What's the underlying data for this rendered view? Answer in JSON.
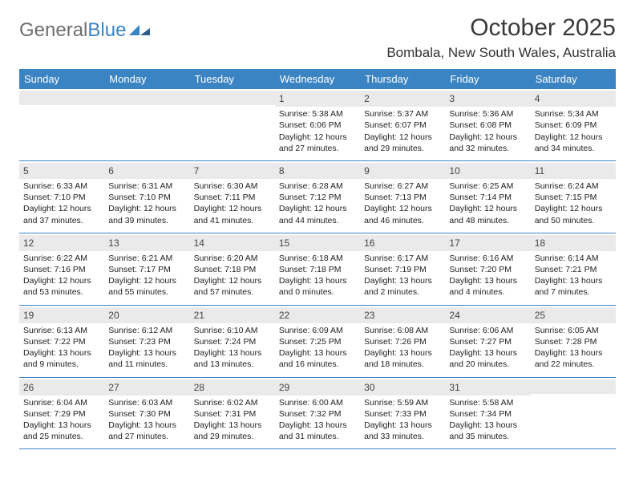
{
  "brand": {
    "word1": "General",
    "word2": "Blue",
    "word1_color": "#6d6d6d",
    "word2_color": "#3b84c4"
  },
  "title": "October 2025",
  "location": "Bombala, New South Wales, Australia",
  "header_bg": "#3b84c4",
  "header_fg": "#ffffff",
  "daynum_bg": "#eaeaea",
  "week_border": "#3b84c4",
  "days_of_week": [
    "Sunday",
    "Monday",
    "Tuesday",
    "Wednesday",
    "Thursday",
    "Friday",
    "Saturday"
  ],
  "weeks": [
    [
      {
        "n": "",
        "lines": []
      },
      {
        "n": "",
        "lines": []
      },
      {
        "n": "",
        "lines": []
      },
      {
        "n": "1",
        "lines": [
          "Sunrise: 5:38 AM",
          "Sunset: 6:06 PM",
          "Daylight: 12 hours",
          "and 27 minutes."
        ]
      },
      {
        "n": "2",
        "lines": [
          "Sunrise: 5:37 AM",
          "Sunset: 6:07 PM",
          "Daylight: 12 hours",
          "and 29 minutes."
        ]
      },
      {
        "n": "3",
        "lines": [
          "Sunrise: 5:36 AM",
          "Sunset: 6:08 PM",
          "Daylight: 12 hours",
          "and 32 minutes."
        ]
      },
      {
        "n": "4",
        "lines": [
          "Sunrise: 5:34 AM",
          "Sunset: 6:09 PM",
          "Daylight: 12 hours",
          "and 34 minutes."
        ]
      }
    ],
    [
      {
        "n": "5",
        "lines": [
          "Sunrise: 6:33 AM",
          "Sunset: 7:10 PM",
          "Daylight: 12 hours",
          "and 37 minutes."
        ]
      },
      {
        "n": "6",
        "lines": [
          "Sunrise: 6:31 AM",
          "Sunset: 7:10 PM",
          "Daylight: 12 hours",
          "and 39 minutes."
        ]
      },
      {
        "n": "7",
        "lines": [
          "Sunrise: 6:30 AM",
          "Sunset: 7:11 PM",
          "Daylight: 12 hours",
          "and 41 minutes."
        ]
      },
      {
        "n": "8",
        "lines": [
          "Sunrise: 6:28 AM",
          "Sunset: 7:12 PM",
          "Daylight: 12 hours",
          "and 44 minutes."
        ]
      },
      {
        "n": "9",
        "lines": [
          "Sunrise: 6:27 AM",
          "Sunset: 7:13 PM",
          "Daylight: 12 hours",
          "and 46 minutes."
        ]
      },
      {
        "n": "10",
        "lines": [
          "Sunrise: 6:25 AM",
          "Sunset: 7:14 PM",
          "Daylight: 12 hours",
          "and 48 minutes."
        ]
      },
      {
        "n": "11",
        "lines": [
          "Sunrise: 6:24 AM",
          "Sunset: 7:15 PM",
          "Daylight: 12 hours",
          "and 50 minutes."
        ]
      }
    ],
    [
      {
        "n": "12",
        "lines": [
          "Sunrise: 6:22 AM",
          "Sunset: 7:16 PM",
          "Daylight: 12 hours",
          "and 53 minutes."
        ]
      },
      {
        "n": "13",
        "lines": [
          "Sunrise: 6:21 AM",
          "Sunset: 7:17 PM",
          "Daylight: 12 hours",
          "and 55 minutes."
        ]
      },
      {
        "n": "14",
        "lines": [
          "Sunrise: 6:20 AM",
          "Sunset: 7:18 PM",
          "Daylight: 12 hours",
          "and 57 minutes."
        ]
      },
      {
        "n": "15",
        "lines": [
          "Sunrise: 6:18 AM",
          "Sunset: 7:18 PM",
          "Daylight: 13 hours",
          "and 0 minutes."
        ]
      },
      {
        "n": "16",
        "lines": [
          "Sunrise: 6:17 AM",
          "Sunset: 7:19 PM",
          "Daylight: 13 hours",
          "and 2 minutes."
        ]
      },
      {
        "n": "17",
        "lines": [
          "Sunrise: 6:16 AM",
          "Sunset: 7:20 PM",
          "Daylight: 13 hours",
          "and 4 minutes."
        ]
      },
      {
        "n": "18",
        "lines": [
          "Sunrise: 6:14 AM",
          "Sunset: 7:21 PM",
          "Daylight: 13 hours",
          "and 7 minutes."
        ]
      }
    ],
    [
      {
        "n": "19",
        "lines": [
          "Sunrise: 6:13 AM",
          "Sunset: 7:22 PM",
          "Daylight: 13 hours",
          "and 9 minutes."
        ]
      },
      {
        "n": "20",
        "lines": [
          "Sunrise: 6:12 AM",
          "Sunset: 7:23 PM",
          "Daylight: 13 hours",
          "and 11 minutes."
        ]
      },
      {
        "n": "21",
        "lines": [
          "Sunrise: 6:10 AM",
          "Sunset: 7:24 PM",
          "Daylight: 13 hours",
          "and 13 minutes."
        ]
      },
      {
        "n": "22",
        "lines": [
          "Sunrise: 6:09 AM",
          "Sunset: 7:25 PM",
          "Daylight: 13 hours",
          "and 16 minutes."
        ]
      },
      {
        "n": "23",
        "lines": [
          "Sunrise: 6:08 AM",
          "Sunset: 7:26 PM",
          "Daylight: 13 hours",
          "and 18 minutes."
        ]
      },
      {
        "n": "24",
        "lines": [
          "Sunrise: 6:06 AM",
          "Sunset: 7:27 PM",
          "Daylight: 13 hours",
          "and 20 minutes."
        ]
      },
      {
        "n": "25",
        "lines": [
          "Sunrise: 6:05 AM",
          "Sunset: 7:28 PM",
          "Daylight: 13 hours",
          "and 22 minutes."
        ]
      }
    ],
    [
      {
        "n": "26",
        "lines": [
          "Sunrise: 6:04 AM",
          "Sunset: 7:29 PM",
          "Daylight: 13 hours",
          "and 25 minutes."
        ]
      },
      {
        "n": "27",
        "lines": [
          "Sunrise: 6:03 AM",
          "Sunset: 7:30 PM",
          "Daylight: 13 hours",
          "and 27 minutes."
        ]
      },
      {
        "n": "28",
        "lines": [
          "Sunrise: 6:02 AM",
          "Sunset: 7:31 PM",
          "Daylight: 13 hours",
          "and 29 minutes."
        ]
      },
      {
        "n": "29",
        "lines": [
          "Sunrise: 6:00 AM",
          "Sunset: 7:32 PM",
          "Daylight: 13 hours",
          "and 31 minutes."
        ]
      },
      {
        "n": "30",
        "lines": [
          "Sunrise: 5:59 AM",
          "Sunset: 7:33 PM",
          "Daylight: 13 hours",
          "and 33 minutes."
        ]
      },
      {
        "n": "31",
        "lines": [
          "Sunrise: 5:58 AM",
          "Sunset: 7:34 PM",
          "Daylight: 13 hours",
          "and 35 minutes."
        ]
      },
      {
        "n": "",
        "lines": []
      }
    ]
  ]
}
